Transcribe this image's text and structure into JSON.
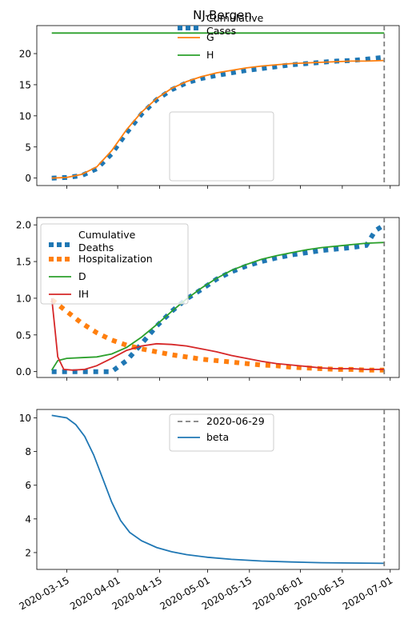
{
  "figure_title": "NJ-Bergen",
  "x_tick_labels": [
    "2020-03-15",
    "2020-04-01",
    "2020-04-15",
    "2020-05-01",
    "2020-05-15",
    "2020-06-01",
    "2020-06-15",
    "2020-07-01"
  ],
  "colors": {
    "blue": "#1f77b4",
    "orange": "#ff7f0e",
    "green": "#2ca02c",
    "red": "#d62728",
    "gray": "#7f7f7f"
  },
  "chart_data": [
    {
      "type": "line",
      "title": "NJ-Bergen",
      "xlabel": "",
      "ylabel": "",
      "xlim": [
        "2020-03-05",
        "2020-07-04"
      ],
      "ylim": [
        -1.2,
        24.5
      ],
      "yticks": [
        0,
        5,
        10,
        15,
        20
      ],
      "vline": "2020-06-29",
      "legend_position": "lower center",
      "series": [
        {
          "name": "Cumulative\nCases",
          "style": "dotted",
          "color": "#1f77b4",
          "x": [
            "2020-03-10",
            "2020-03-15",
            "2020-03-20",
            "2020-03-25",
            "2020-03-30",
            "2020-04-04",
            "2020-04-09",
            "2020-04-14",
            "2020-04-19",
            "2020-04-24",
            "2020-04-29",
            "2020-05-04",
            "2020-05-09",
            "2020-05-14",
            "2020-05-19",
            "2020-05-24",
            "2020-05-29",
            "2020-06-03",
            "2020-06-08",
            "2020-06-13",
            "2020-06-18",
            "2020-06-23",
            "2020-06-29"
          ],
          "y": [
            0.0,
            0.1,
            0.4,
            1.5,
            3.9,
            7.3,
            10.3,
            12.6,
            14.2,
            15.3,
            16.0,
            16.5,
            16.9,
            17.3,
            17.6,
            17.9,
            18.2,
            18.4,
            18.6,
            18.8,
            18.9,
            19.1,
            19.4
          ]
        },
        {
          "name": "G",
          "style": "solid",
          "color": "#ff7f0e",
          "x": [
            "2020-03-10",
            "2020-03-15",
            "2020-03-20",
            "2020-03-25",
            "2020-03-30",
            "2020-04-04",
            "2020-04-09",
            "2020-04-14",
            "2020-04-19",
            "2020-04-24",
            "2020-04-29",
            "2020-05-04",
            "2020-05-09",
            "2020-05-14",
            "2020-05-19",
            "2020-05-24",
            "2020-05-29",
            "2020-06-03",
            "2020-06-08",
            "2020-06-13",
            "2020-06-18",
            "2020-06-23",
            "2020-06-29"
          ],
          "y": [
            0.0,
            0.1,
            0.6,
            1.8,
            4.4,
            7.8,
            10.6,
            12.8,
            14.4,
            15.5,
            16.3,
            16.9,
            17.3,
            17.7,
            18.0,
            18.2,
            18.4,
            18.5,
            18.6,
            18.7,
            18.8,
            18.8,
            18.9
          ]
        },
        {
          "name": "H",
          "style": "solid",
          "color": "#2ca02c",
          "x": [
            "2020-03-10",
            "2020-06-29"
          ],
          "y": [
            23.3,
            23.3
          ]
        }
      ]
    },
    {
      "type": "line",
      "title": "",
      "xlabel": "",
      "ylabel": "",
      "xlim": [
        "2020-03-05",
        "2020-07-04"
      ],
      "ylim": [
        -0.08,
        2.1
      ],
      "yticks": [
        0.0,
        0.5,
        1.0,
        1.5,
        2.0
      ],
      "vline": "2020-06-29",
      "legend_position": "upper left",
      "series": [
        {
          "name": "Cumulative\nDeaths",
          "style": "dotted",
          "color": "#1f77b4",
          "x": [
            "2020-03-10",
            "2020-03-15",
            "2020-03-20",
            "2020-03-25",
            "2020-03-30",
            "2020-04-04",
            "2020-04-09",
            "2020-04-14",
            "2020-04-19",
            "2020-04-24",
            "2020-04-29",
            "2020-05-04",
            "2020-05-09",
            "2020-05-14",
            "2020-05-19",
            "2020-05-24",
            "2020-05-29",
            "2020-06-03",
            "2020-06-08",
            "2020-06-13",
            "2020-06-18",
            "2020-06-23",
            "2020-06-26",
            "2020-06-29"
          ],
          "y": [
            0.0,
            0.0,
            0.0,
            0.0,
            0.0,
            0.15,
            0.38,
            0.62,
            0.82,
            0.99,
            1.12,
            1.26,
            1.36,
            1.44,
            1.5,
            1.55,
            1.59,
            1.62,
            1.65,
            1.67,
            1.69,
            1.72,
            1.92,
            2.0
          ]
        },
        {
          "name": "Hospitalization",
          "style": "dotted",
          "color": "#ff7f0e",
          "x": [
            "2020-03-10",
            "2020-03-15",
            "2020-03-20",
            "2020-03-25",
            "2020-03-30",
            "2020-04-04",
            "2020-04-09",
            "2020-04-14",
            "2020-04-19",
            "2020-04-24",
            "2020-04-29",
            "2020-05-04",
            "2020-05-09",
            "2020-05-14",
            "2020-05-19",
            "2020-05-24",
            "2020-05-29",
            "2020-06-03",
            "2020-06-08",
            "2020-06-13",
            "2020-06-18",
            "2020-06-23",
            "2020-06-29"
          ],
          "y": [
            0.98,
            0.82,
            0.66,
            0.53,
            0.43,
            0.36,
            0.31,
            0.27,
            0.23,
            0.2,
            0.17,
            0.15,
            0.13,
            0.11,
            0.09,
            0.08,
            0.06,
            0.05,
            0.04,
            0.03,
            0.03,
            0.02,
            0.02
          ]
        },
        {
          "name": "D",
          "style": "solid",
          "color": "#2ca02c",
          "x": [
            "2020-03-10",
            "2020-03-12",
            "2020-03-15",
            "2020-03-20",
            "2020-03-25",
            "2020-03-30",
            "2020-04-04",
            "2020-04-09",
            "2020-04-14",
            "2020-04-19",
            "2020-04-24",
            "2020-04-29",
            "2020-05-04",
            "2020-05-09",
            "2020-05-14",
            "2020-05-19",
            "2020-05-24",
            "2020-05-29",
            "2020-06-03",
            "2020-06-08",
            "2020-06-13",
            "2020-06-18",
            "2020-06-23",
            "2020-06-29"
          ],
          "y": [
            0.02,
            0.15,
            0.18,
            0.19,
            0.2,
            0.24,
            0.33,
            0.47,
            0.64,
            0.82,
            0.99,
            1.14,
            1.27,
            1.38,
            1.46,
            1.53,
            1.58,
            1.62,
            1.66,
            1.69,
            1.71,
            1.73,
            1.75,
            1.76
          ]
        },
        {
          "name": "IH",
          "style": "solid",
          "color": "#d62728",
          "x": [
            "2020-03-10",
            "2020-03-11",
            "2020-03-12",
            "2020-03-14",
            "2020-03-17",
            "2020-03-21",
            "2020-03-25",
            "2020-03-30",
            "2020-04-04",
            "2020-04-09",
            "2020-04-14",
            "2020-04-19",
            "2020-04-24",
            "2020-04-29",
            "2020-05-04",
            "2020-05-09",
            "2020-05-14",
            "2020-05-19",
            "2020-05-24",
            "2020-05-29",
            "2020-06-03",
            "2020-06-08",
            "2020-06-13",
            "2020-06-18",
            "2020-06-23",
            "2020-06-29"
          ],
          "y": [
            1.0,
            0.6,
            0.2,
            0.03,
            0.02,
            0.03,
            0.08,
            0.18,
            0.29,
            0.35,
            0.38,
            0.37,
            0.35,
            0.31,
            0.27,
            0.22,
            0.18,
            0.14,
            0.11,
            0.09,
            0.07,
            0.05,
            0.04,
            0.04,
            0.03,
            0.03
          ]
        }
      ]
    },
    {
      "type": "line",
      "title": "",
      "xlabel": "",
      "ylabel": "",
      "xlim": [
        "2020-03-05",
        "2020-07-04"
      ],
      "ylim": [
        1.0,
        10.5
      ],
      "yticks": [
        2,
        4,
        6,
        8,
        10
      ],
      "vline": "2020-06-29",
      "legend_position": "upper center",
      "series": [
        {
          "name": "2020-06-29",
          "style": "dashed",
          "color": "#7f7f7f",
          "x": [],
          "y": []
        },
        {
          "name": "beta",
          "style": "solid",
          "color": "#1f77b4",
          "x": [
            "2020-03-10",
            "2020-03-15",
            "2020-03-18",
            "2020-03-21",
            "2020-03-24",
            "2020-03-27",
            "2020-03-30",
            "2020-04-02",
            "2020-04-05",
            "2020-04-09",
            "2020-04-14",
            "2020-04-19",
            "2020-04-24",
            "2020-05-01",
            "2020-05-09",
            "2020-05-19",
            "2020-05-29",
            "2020-06-08",
            "2020-06-18",
            "2020-06-29"
          ],
          "y": [
            10.15,
            10.0,
            9.6,
            8.9,
            7.8,
            6.4,
            5.0,
            3.9,
            3.2,
            2.7,
            2.3,
            2.05,
            1.88,
            1.72,
            1.6,
            1.5,
            1.44,
            1.4,
            1.38,
            1.36
          ]
        }
      ]
    }
  ]
}
